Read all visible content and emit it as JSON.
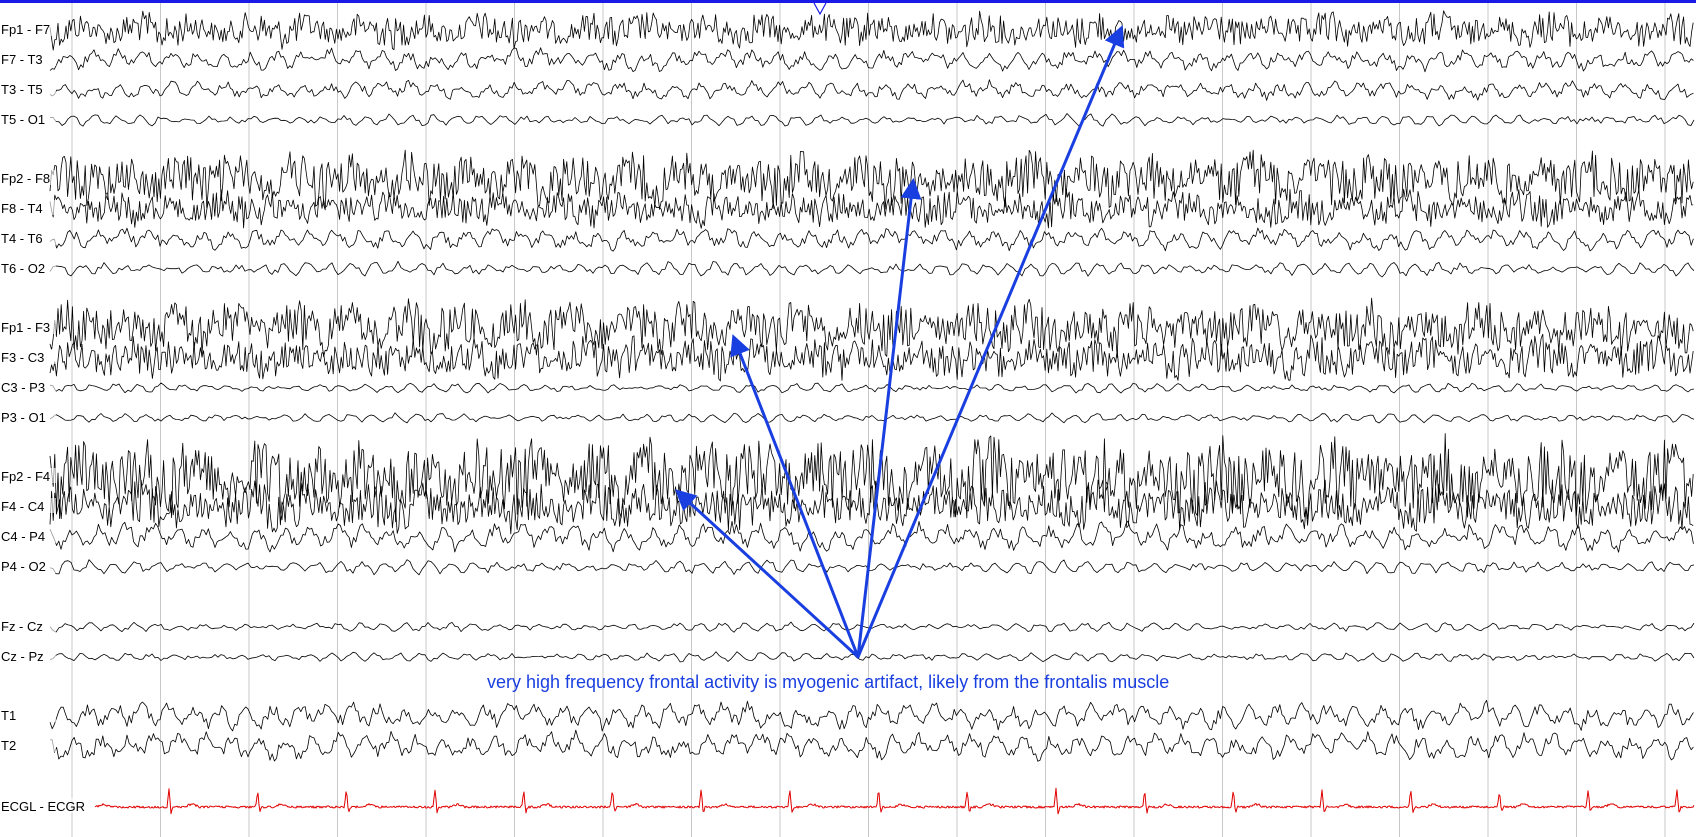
{
  "colors": {
    "background": "#ffffff",
    "trace": "#000000",
    "ecg_trace": "#e00000",
    "gridline": "#c8c8c8",
    "annotation": "#1a3fe0",
    "top_bar": "#1a1ae6"
  },
  "chart_data": {
    "type": "line",
    "grid": true,
    "legend": "none",
    "channels": [
      {
        "id": "fp1-f7",
        "label": "Fp1 - F7",
        "group": 1,
        "activity": "muscle",
        "amplitude": 0.55
      },
      {
        "id": "f7-t3",
        "label": "F7 - T3",
        "group": 1,
        "activity": "mixed",
        "amplitude": 0.35
      },
      {
        "id": "t3-t5",
        "label": "T3 - T5",
        "group": 1,
        "activity": "mixed",
        "amplitude": 0.3
      },
      {
        "id": "t5-o1",
        "label": "T5 - O1",
        "group": 1,
        "activity": "alpha",
        "amplitude": 0.25
      },
      {
        "id": "fp2-f8",
        "label": "Fp2 - F8",
        "group": 2,
        "activity": "muscle",
        "amplitude": 0.85
      },
      {
        "id": "f8-t4",
        "label": "F8 - T4",
        "group": 2,
        "activity": "muscle",
        "amplitude": 0.55
      },
      {
        "id": "t4-t6",
        "label": "T4 - T6",
        "group": 2,
        "activity": "mixed",
        "amplitude": 0.35
      },
      {
        "id": "t6-o2",
        "label": "T6 - O2",
        "group": 2,
        "activity": "alpha",
        "amplitude": 0.3
      },
      {
        "id": "fp1-f3",
        "label": "Fp1 - F3",
        "group": 3,
        "activity": "muscle",
        "amplitude": 0.85
      },
      {
        "id": "f3-c3",
        "label": "F3 - C3",
        "group": 3,
        "activity": "muscle",
        "amplitude": 0.65
      },
      {
        "id": "c3-p3",
        "label": "C3 - P3",
        "group": 3,
        "activity": "alpha",
        "amplitude": 0.2
      },
      {
        "id": "p3-o1",
        "label": "P3 - O1",
        "group": 3,
        "activity": "alpha",
        "amplitude": 0.2
      },
      {
        "id": "fp2-f4",
        "label": "Fp2 - F4",
        "group": 4,
        "activity": "muscle",
        "amplitude": 1.25
      },
      {
        "id": "f4-c4",
        "label": "F4 - C4",
        "group": 4,
        "activity": "muscle",
        "amplitude": 0.75
      },
      {
        "id": "c4-p4",
        "label": "C4 - P4",
        "group": 4,
        "activity": "mixed",
        "amplitude": 0.45
      },
      {
        "id": "p4-o2",
        "label": "P4 - O2",
        "group": 4,
        "activity": "alpha",
        "amplitude": 0.3
      },
      {
        "id": "fz-cz",
        "label": "Fz - Cz",
        "group": 5,
        "activity": "alpha",
        "amplitude": 0.2
      },
      {
        "id": "cz-pz",
        "label": "Cz - Pz",
        "group": 5,
        "activity": "alpha",
        "amplitude": 0.2
      },
      {
        "id": "t1",
        "label": "T1",
        "group": 6,
        "activity": "mixed",
        "amplitude": 0.45
      },
      {
        "id": "t2",
        "label": "T2",
        "group": 6,
        "activity": "mixed",
        "amplitude": 0.45
      },
      {
        "id": "ecg",
        "label": "ECGL - ECGR",
        "group": 7,
        "activity": "ecg",
        "amplitude": 1.0
      }
    ],
    "annotations": [
      {
        "text": "very high frequency frontal activity is myogenic artifact, likely from the frontalis muscle",
        "points_to": [
          "fp2-f4",
          "fp1-f3",
          "fp2-f8",
          "fp1-f7"
        ]
      }
    ]
  }
}
